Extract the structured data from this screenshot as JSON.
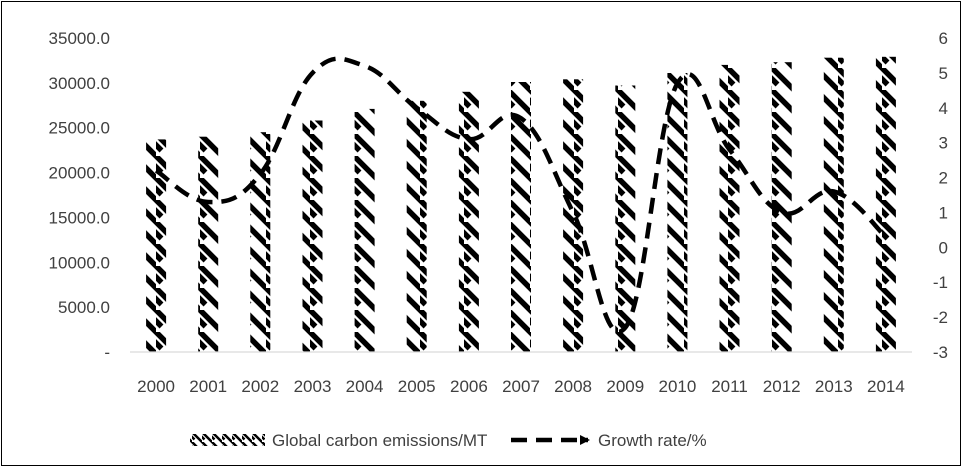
{
  "chart_data": {
    "type": "bar",
    "categories": [
      "2000",
      "2001",
      "2002",
      "2003",
      "2004",
      "2005",
      "2006",
      "2007",
      "2008",
      "2009",
      "2010",
      "2011",
      "2012",
      "2013",
      "2014"
    ],
    "series": [
      {
        "name": "Global carbon emissions/MT",
        "type": "bar",
        "axis": "left",
        "pattern": "diagonal-hatch",
        "values": [
          23700,
          24000,
          24500,
          25800,
          27100,
          28000,
          29000,
          30100,
          30400,
          29700,
          31100,
          32000,
          32300,
          32800,
          32900
        ]
      },
      {
        "name": "Growth rate/%",
        "type": "line",
        "axis": "right",
        "style": "dashed-arrow",
        "values": [
          2.2,
          1.3,
          2.1,
          5.0,
          5.2,
          4.0,
          3.1,
          3.7,
          1.0,
          -2.3,
          4.7,
          2.8,
          1.0,
          1.6,
          0.3
        ]
      }
    ],
    "y_left": {
      "ylim": [
        0,
        35000
      ],
      "ticks": [
        0,
        5000,
        10000,
        15000,
        20000,
        25000,
        30000,
        35000
      ],
      "tick_labels": [
        "-",
        "5000.0",
        "10000.0",
        "15000.0",
        "20000.0",
        "25000.0",
        "30000.0",
        "35000.0"
      ]
    },
    "y_right": {
      "ylim": [
        -3,
        6
      ],
      "ticks": [
        -3,
        -2,
        -1,
        0,
        1,
        2,
        3,
        4,
        5,
        6
      ],
      "tick_labels": [
        "-3",
        "-2",
        "-1",
        "0",
        "1",
        "2",
        "3",
        "4",
        "5",
        "6"
      ]
    },
    "title": "",
    "xlabel": "",
    "ylabel": "",
    "grid": false,
    "legend_position": "bottom",
    "colors": {
      "bar": "#000000",
      "line": "#000000",
      "text": "#404040",
      "axis": "#d9d9d9"
    }
  }
}
